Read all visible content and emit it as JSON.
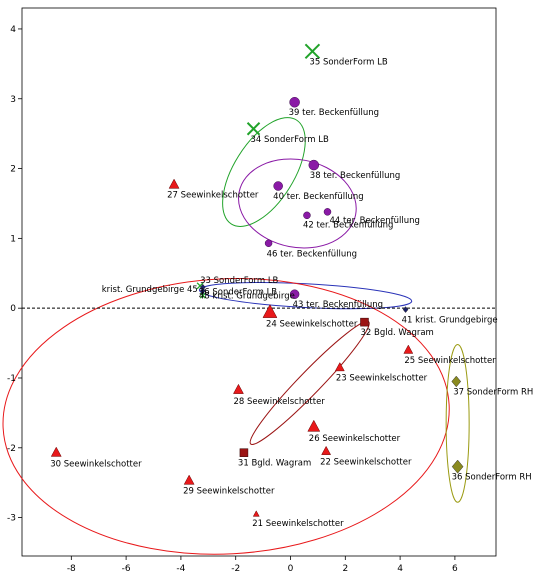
{
  "chart_data": {
    "type": "scatter",
    "xlim": [
      -9.8,
      7.5
    ],
    "ylim": [
      -3.55,
      4.3
    ],
    "x_ticks": [
      -8,
      -6,
      -4,
      -2,
      0,
      2,
      4,
      6
    ],
    "y_ticks": [
      -3,
      -2,
      -1,
      0,
      1,
      2,
      3,
      4
    ],
    "x_tick_labels": [
      "-8",
      "-6",
      "-4",
      "-2",
      "0",
      "2",
      "4",
      "6"
    ],
    "y_tick_labels": [
      "-3",
      "-2",
      "-1",
      "0",
      "1",
      "2",
      "3",
      "4"
    ],
    "reference_line_y": 0,
    "colors": {
      "red": "#e8191b",
      "darkred": "#9b1414",
      "green": "#21a32a",
      "purple": "#8a1aa6",
      "blue": "#2a33b8",
      "olive": "#9a9a10",
      "olive_marker": "#8a8a20",
      "navy": "#1a1f66"
    },
    "points": [
      {
        "label": "35 SonderForm LB",
        "x": 0.8,
        "y": 3.68,
        "marker": "x",
        "color": "green",
        "size": 7
      },
      {
        "label": "34 SonderForm LB",
        "x": -1.35,
        "y": 2.57,
        "marker": "x",
        "color": "green",
        "size": 6
      },
      {
        "label": "39 ter. Beckenfüllung",
        "x": 0.15,
        "y": 2.95,
        "marker": "circle",
        "color": "purple",
        "size": 5
      },
      {
        "label": "38 ter. Beckenfüllung",
        "x": 0.85,
        "y": 2.05,
        "marker": "circle",
        "color": "purple",
        "size": 5
      },
      {
        "label": "40 ter. Beckenfüllung",
        "x": -0.45,
        "y": 1.75,
        "marker": "circle",
        "color": "purple",
        "size": 4.5
      },
      {
        "label": "44 ter. Beckenfüllung",
        "x": 1.35,
        "y": 1.38,
        "marker": "circle",
        "color": "purple",
        "size": 3.5
      },
      {
        "label": "42 ter. Beckenfüllung",
        "x": 0.6,
        "y": 1.33,
        "marker": "circle",
        "color": "purple",
        "size": 3.5
      },
      {
        "label": "46 ter. Beckenfüllung",
        "x": -0.8,
        "y": 0.93,
        "marker": "circle",
        "color": "purple",
        "size": 3.5
      },
      {
        "label": "43 ter. Beckenfüllung",
        "x": 0.15,
        "y": 0.2,
        "marker": "circle",
        "color": "purple",
        "size": 4.5
      },
      {
        "label": "27 Seewinkelschotter",
        "x": -4.25,
        "y": 1.77,
        "marker": "triangle",
        "color": "red",
        "size": 5
      },
      {
        "label": "33 SonderForm LB",
        "x": -3.3,
        "y": 0.32,
        "marker": "x",
        "color": "green",
        "size": 3
      },
      {
        "label": "krist. Grundgebirge 45",
        "x": -3.2,
        "y": 0.3,
        "marker": "diamond",
        "color": "navy",
        "size": 2.5
      },
      {
        "label": "48 krist. Grundgebirge",
        "x": -3.2,
        "y": 0.25,
        "marker": "diamond",
        "color": "navy",
        "size": 2.5
      },
      {
        "label": "36 SonderForm LB",
        "x": -3.2,
        "y": 0.18,
        "marker": "x",
        "color": "green",
        "size": 2.5
      },
      {
        "label": "41 krist. Grundgebirge",
        "x": 4.2,
        "y": -0.02,
        "marker": "diamond",
        "color": "navy",
        "size": 2.5
      },
      {
        "label": "24 Seewinkelschotter",
        "x": -0.75,
        "y": -0.06,
        "marker": "triangle",
        "color": "red",
        "size": 7
      },
      {
        "label": "32 Bgld. Wagram",
        "x": 2.7,
        "y": -0.2,
        "marker": "square",
        "color": "darkred",
        "size": 4
      },
      {
        "label": "25 Seewinkelschotter",
        "x": 4.3,
        "y": -0.6,
        "marker": "triangle",
        "color": "red",
        "size": 4.5
      },
      {
        "label": "23 Seewinkelschotter",
        "x": 1.8,
        "y": -0.85,
        "marker": "triangle",
        "color": "red",
        "size": 4.5
      },
      {
        "label": "37 SonderForm RH",
        "x": 6.05,
        "y": -1.05,
        "marker": "diamond",
        "color": "olive_marker",
        "size": 4.5
      },
      {
        "label": "28 Seewinkelschotter",
        "x": -1.9,
        "y": -1.17,
        "marker": "triangle",
        "color": "red",
        "size": 5
      },
      {
        "label": "26 Seewinkelschotter",
        "x": 0.85,
        "y": -1.7,
        "marker": "triangle",
        "color": "red",
        "size": 6
      },
      {
        "label": "30 Seewinkelschotter",
        "x": -8.55,
        "y": -2.07,
        "marker": "triangle",
        "color": "red",
        "size": 5
      },
      {
        "label": "31 Bgld. Wagram",
        "x": -1.7,
        "y": -2.07,
        "marker": "square",
        "color": "darkred",
        "size": 4
      },
      {
        "label": "22 Seewinkelschotter",
        "x": 1.3,
        "y": -2.05,
        "marker": "triangle",
        "color": "red",
        "size": 4.5
      },
      {
        "label": "36 SonderForm RH",
        "x": 6.1,
        "y": -2.27,
        "marker": "diamond",
        "color": "olive_marker",
        "size": 5.5
      },
      {
        "label": "29 Seewinkelschotter",
        "x": -3.7,
        "y": -2.47,
        "marker": "triangle",
        "color": "red",
        "size": 5
      },
      {
        "label": "21 Seewinkelschotter",
        "x": -1.25,
        "y": -2.95,
        "marker": "triangle",
        "color": "red",
        "size": 3
      }
    ],
    "ellipses": [
      {
        "color": "green",
        "cx": -0.97,
        "cy": 1.95,
        "rx": 2.24,
        "ry": 0.43,
        "rotate": -58
      },
      {
        "color": "purple",
        "cx": 0.25,
        "cy": 1.5,
        "rx": 1.6,
        "ry": 0.85,
        "rotate": -79
      },
      {
        "color": "blue",
        "cx": 0.55,
        "cy": 0.18,
        "rx": 3.88,
        "ry": 0.17,
        "rotate": 3
      },
      {
        "color": "red",
        "cx": -2.35,
        "cy": -1.55,
        "rx": 8.15,
        "ry": 1.97,
        "rotate": -3
      },
      {
        "color": "darkred",
        "cx": 0.7,
        "cy": -1.07,
        "rx": 3.1,
        "ry": 0.16,
        "rotate": -46
      },
      {
        "color": "olive",
        "cx": 6.1,
        "cy": -1.65,
        "rx": 0.42,
        "ry": 1.13,
        "rotate": 0
      }
    ]
  }
}
